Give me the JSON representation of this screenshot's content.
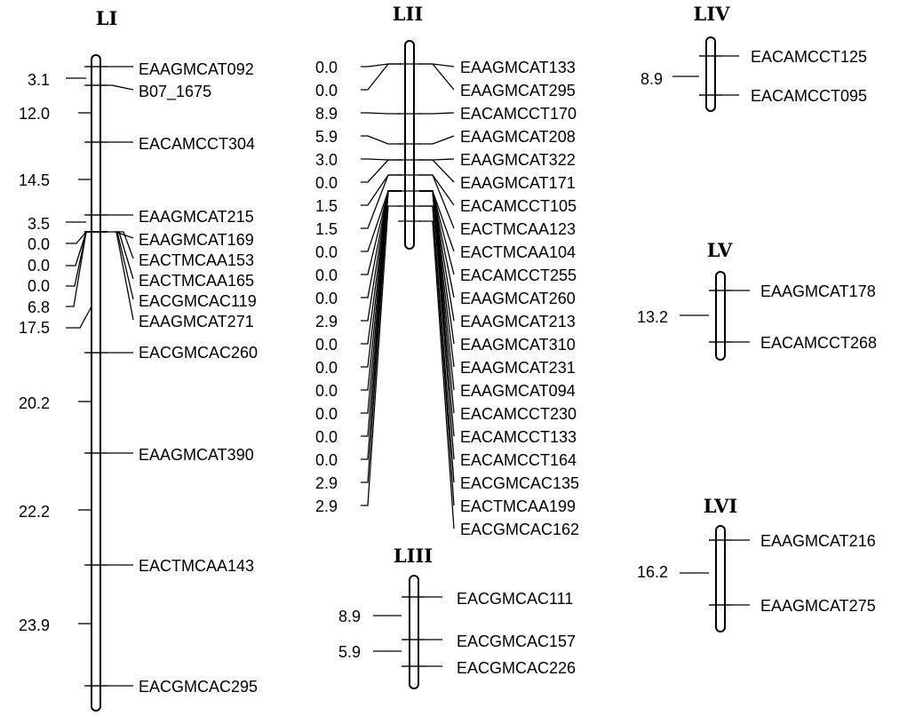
{
  "linkage_groups": [
    {
      "name": "LI",
      "markers": [
        "EAAGMCAT092",
        "B07_1675",
        "EACAMCCT304",
        "EAAGMCAT215",
        "EAAGMCAT169",
        "EACTMCAA153",
        "EACTMCAA165",
        "EACGMCAC119",
        "EAAGMCAT271",
        "EACGMCAC260",
        "EAAGMCAT390",
        "EACTMCAA143",
        "EACGMCAC295"
      ],
      "distances": [
        "3.1",
        "12.0",
        "14.5",
        "3.5",
        "0.0",
        "0.0",
        "0.0",
        "6.8",
        "17.5",
        "20.2",
        "22.2",
        "23.9"
      ]
    },
    {
      "name": "LII",
      "markers": [
        "EAAGMCAT133",
        "EAAGMCAT295",
        "EACAMCCT170",
        "EAAGMCAT208",
        "EAAGMCAT322",
        "EAAGMCAT171",
        "EACAMCCT105",
        "EACTMCAA123",
        "EACTMCAA104",
        "EACAMCCT255",
        "EAAGMCAT260",
        "EAAGMCAT213",
        "EAAGMCAT310",
        "EAAGMCAT231",
        "EAAGMCAT094",
        "EACAMCCT230",
        "EACAMCCT133",
        "EACAMCCT164",
        "EACGMCAC135",
        "EACTMCAA199",
        "EACGMCAC162"
      ],
      "distances": [
        "0.0",
        "0.0",
        "8.9",
        "5.9",
        "3.0",
        "0.0",
        "1.5",
        "1.5",
        "0.0",
        "0.0",
        "0.0",
        "2.9",
        "0.0",
        "0.0",
        "0.0",
        "0.0",
        "0.0",
        "0.0",
        "2.9",
        "2.9"
      ]
    },
    {
      "name": "LIII",
      "markers": [
        "EACGMCAC111",
        "EACGMCAC157",
        "EACGMCAC226"
      ],
      "distances": [
        "8.9",
        "5.9"
      ]
    },
    {
      "name": "LIV",
      "markers": [
        "EACAMCCT125",
        "EACAMCCT095"
      ],
      "distances": [
        "8.9"
      ]
    },
    {
      "name": "LV",
      "markers": [
        "EAAGMCAT178",
        "EACAMCCT268"
      ],
      "distances": [
        "13.2"
      ]
    },
    {
      "name": "LVI",
      "markers": [
        "EAAGMCAT216",
        "EAAGMCAT275"
      ],
      "distances": [
        "16.2"
      ]
    }
  ]
}
